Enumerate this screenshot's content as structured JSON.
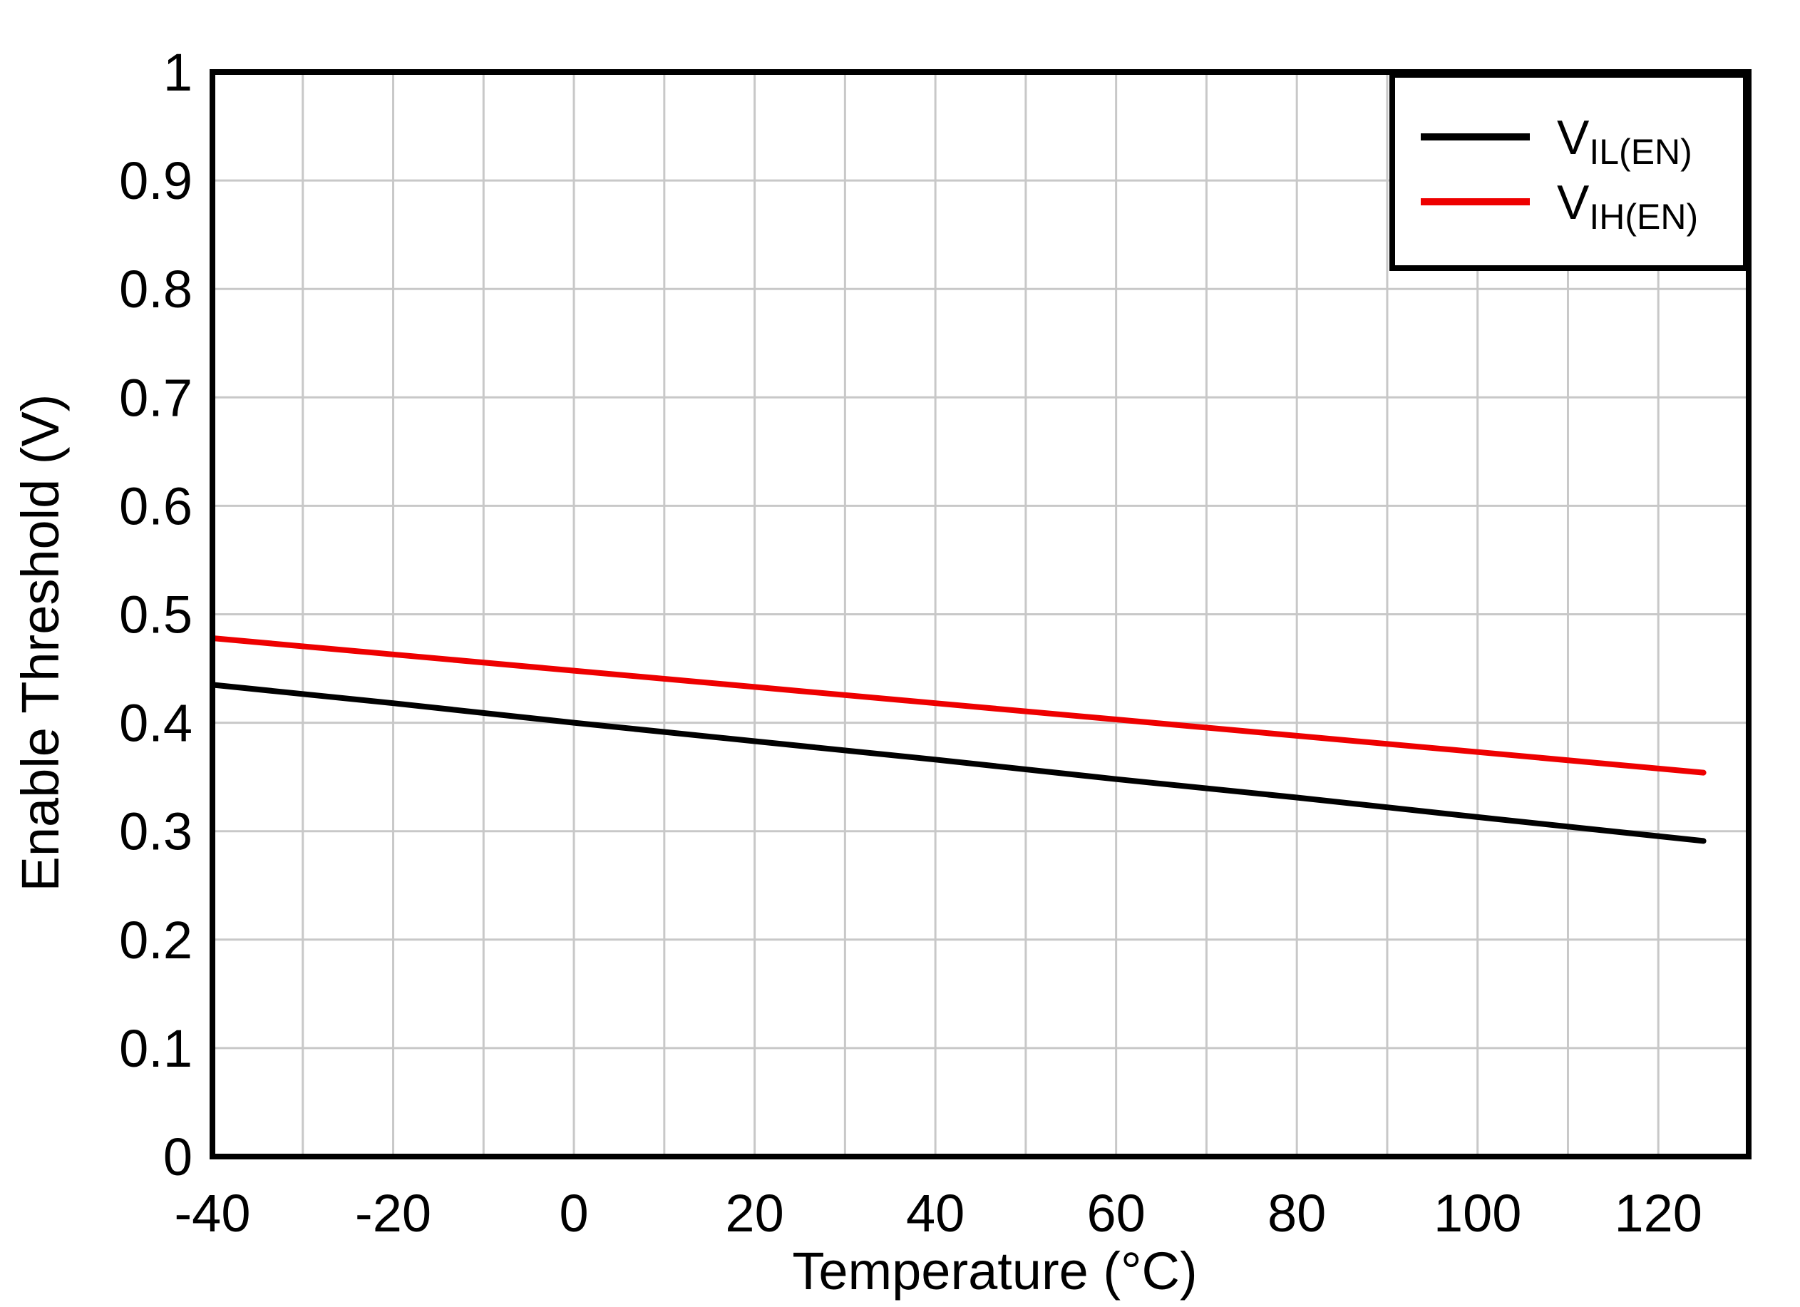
{
  "chart_data": {
    "type": "line",
    "title": "",
    "xlabel": "Temperature (°C)",
    "ylabel": "Enable Threshold (V)",
    "xlim": [
      -40,
      130
    ],
    "ylim": [
      0,
      1
    ],
    "xticks": [
      -40,
      -20,
      0,
      20,
      40,
      60,
      80,
      100,
      120
    ],
    "xtick_labels": [
      "-40",
      "-20",
      "0",
      "20",
      "40",
      "60",
      "80",
      "100",
      "120"
    ],
    "yticks": [
      0,
      0.1,
      0.2,
      0.3,
      0.4,
      0.5,
      0.6,
      0.7,
      0.8,
      0.9,
      1
    ],
    "ytick_labels": [
      "0",
      "0.1",
      "0.2",
      "0.3",
      "0.4",
      "0.5",
      "0.6",
      "0.7",
      "0.8",
      "0.9",
      "1"
    ],
    "grid": true,
    "legend_position": "top-right",
    "series": [
      {
        "name": "VIL(EN)",
        "label_main": "V",
        "label_sub": "IL(EN)",
        "color": "#000000",
        "x": [
          -40,
          -20,
          0,
          20,
          40,
          60,
          80,
          100,
          125
        ],
        "y": [
          0.435,
          0.418,
          0.4,
          0.383,
          0.366,
          0.348,
          0.331,
          0.313,
          0.291
        ]
      },
      {
        "name": "VIH(EN)",
        "label_main": "V",
        "label_sub": "IH(EN)",
        "color": "#ee0000",
        "x": [
          -40,
          -20,
          0,
          20,
          40,
          60,
          80,
          100,
          125
        ],
        "y": [
          0.478,
          0.463,
          0.448,
          0.433,
          0.418,
          0.403,
          0.388,
          0.373,
          0.354
        ]
      }
    ]
  }
}
